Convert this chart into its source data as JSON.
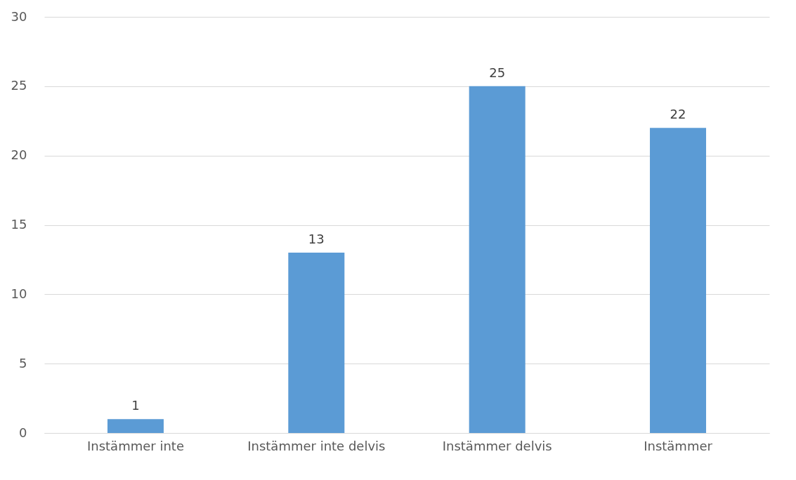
{
  "chart_data": {
    "type": "bar",
    "categories": [
      "Instämmer inte",
      "Instämmer inte delvis",
      "Instämmer delvis",
      "Instämmer"
    ],
    "values": [
      1,
      13,
      25,
      22
    ],
    "color": "#5b9bd5",
    "ylim": [
      0,
      30
    ],
    "yticks": [
      0,
      5,
      10,
      15,
      20,
      25,
      30
    ],
    "grid": "y",
    "data_labels": true
  }
}
